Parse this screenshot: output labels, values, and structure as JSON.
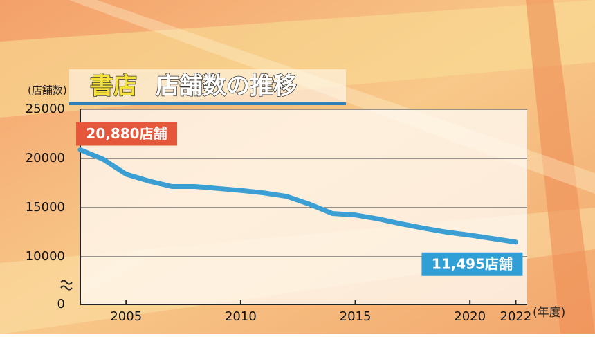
{
  "chart_data": {
    "type": "line",
    "title_highlight": "書店",
    "title": "店舗数の推移",
    "y_label": "(店舗数)",
    "x_label": "(年度)",
    "x": [
      2003,
      2004,
      2005,
      2006,
      2007,
      2008,
      2009,
      2010,
      2011,
      2012,
      2013,
      2014,
      2015,
      2016,
      2017,
      2018,
      2019,
      2020,
      2021,
      2022
    ],
    "series": [
      {
        "color": "#3b9fd3",
        "values": [
          20880,
          19920,
          18400,
          17700,
          17150,
          17150,
          16950,
          16750,
          16500,
          16150,
          15350,
          14400,
          14250,
          13850,
          13350,
          12900,
          12500,
          12200,
          11850,
          11495
        ],
        "value_labels": [
          "20,880店舗",
          null,
          null,
          null,
          null,
          null,
          null,
          null,
          null,
          null,
          null,
          null,
          null,
          null,
          null,
          null,
          null,
          null,
          null,
          "11,495店舗"
        ]
      }
    ],
    "xlim": [
      2003,
      2022.5
    ],
    "xticks": [
      2005,
      2010,
      2015,
      2020,
      2022
    ],
    "ylim": [
      0,
      25000
    ],
    "yticks": [
      0,
      10000,
      15000,
      20000,
      25000
    ],
    "y_break": true,
    "grid": true
  }
}
